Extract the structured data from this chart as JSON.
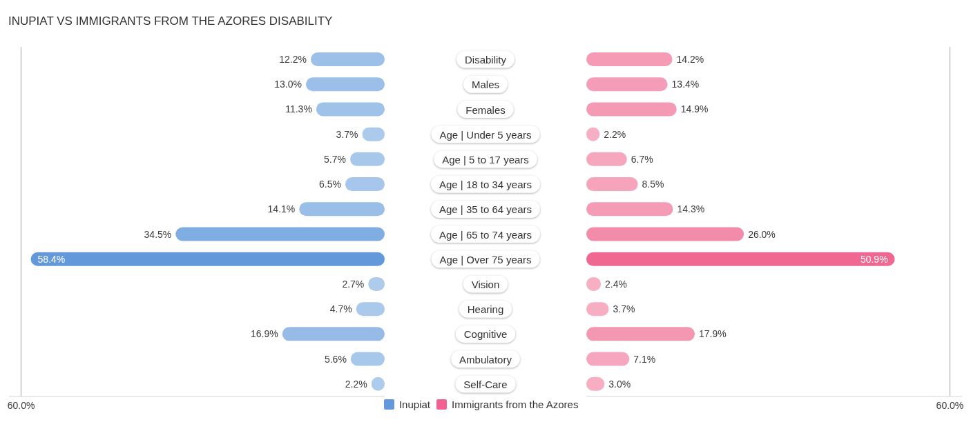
{
  "chart_data": [
    {
      "type": "bar",
      "orientation": "horizontal",
      "title": "INUPIAT VS IMMIGRANTS FROM THE AZORES DISABILITY",
      "categories": [
        "Disability",
        "Males",
        "Females",
        "Age | Under 5 years",
        "Age | 5 to 17 years",
        "Age | 18 to 34 years",
        "Age | 35 to 64 years",
        "Age | 65 to 74 years",
        "Age | Over 75 years",
        "Vision",
        "Hearing",
        "Cognitive",
        "Ambulatory",
        "Self-Care"
      ],
      "series": [
        {
          "name": "Inupiat",
          "color": "#6399db",
          "colors": [
            "#9dc0e8",
            "#9bbfe8",
            "#9fc2e9",
            "#abcaec",
            "#a8c8eb",
            "#a6c6eb",
            "#99bee7",
            "#80ade2",
            "#6399db",
            "#aecbec",
            "#aac9eb",
            "#96bbe7",
            "#a8c8eb",
            "#aecbed"
          ],
          "values": [
            12.2,
            13.0,
            11.3,
            3.7,
            5.7,
            6.5,
            14.1,
            34.5,
            58.4,
            2.7,
            4.7,
            16.9,
            5.6,
            2.2
          ],
          "value_labels": [
            "12.2%",
            "13.0%",
            "11.3%",
            "3.7%",
            "5.7%",
            "6.5%",
            "14.1%",
            "34.5%",
            "58.4%",
            "2.7%",
            "4.7%",
            "16.9%",
            "5.6%",
            "2.2%"
          ]
        }
      ],
      "xlim": [
        62,
        0
      ],
      "xticks": [
        {
          "value": 60,
          "label": "60.0%"
        }
      ],
      "grid": "x",
      "legend": "bottom right"
    },
    {
      "type": "bar",
      "orientation": "horizontal",
      "categories": [
        "Disability",
        "Males",
        "Females",
        "Age | Under 5 years",
        "Age | 5 to 17 years",
        "Age | 18 to 34 years",
        "Age | 35 to 64 years",
        "Age | 65 to 74 years",
        "Age | Over 75 years",
        "Vision",
        "Hearing",
        "Cognitive",
        "Ambulatory",
        "Self-Care"
      ],
      "series": [
        {
          "name": "Immigrants from the Azores",
          "color": "#f0628f",
          "colors": [
            "#f59bb6",
            "#f59db8",
            "#f59ab5",
            "#f7afc4",
            "#f6a7be",
            "#f6a4bc",
            "#f59bb6",
            "#f38bab",
            "#f06892",
            "#f7afc4",
            "#f7adc2",
            "#f497b3",
            "#f6a6be",
            "#f7aec3"
          ],
          "values": [
            14.2,
            13.4,
            14.9,
            2.2,
            6.7,
            8.5,
            14.3,
            26.0,
            50.9,
            2.4,
            3.7,
            17.9,
            7.1,
            3.0
          ],
          "value_labels": [
            "14.2%",
            "13.4%",
            "14.9%",
            "2.2%",
            "6.7%",
            "8.5%",
            "14.3%",
            "26.0%",
            "50.9%",
            "2.4%",
            "3.7%",
            "17.9%",
            "7.1%",
            "3.0%"
          ]
        }
      ],
      "xlim": [
        0,
        62
      ],
      "xticks": [
        {
          "value": 60,
          "label": "60.0%"
        }
      ],
      "grid": "x",
      "legend": "bottom left",
      "tick_labels": "x"
    }
  ]
}
